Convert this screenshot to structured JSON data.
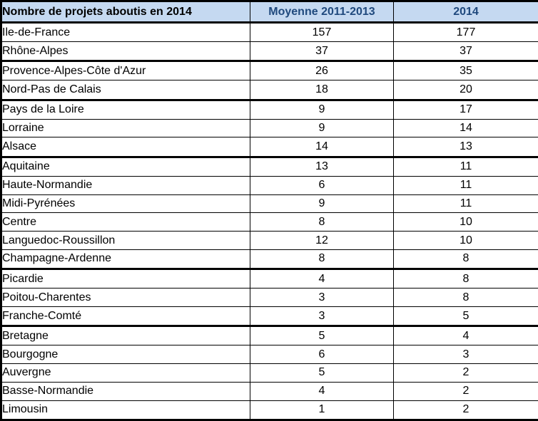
{
  "colors": {
    "header_background": "#C5D9F1",
    "header_title_text": "#000000",
    "header_column_text": "#1F497D",
    "body_text": "#000000",
    "border": "#000000"
  },
  "table": {
    "header": {
      "col1": "Nombre de projets aboutis en 2014",
      "col2": "Moyenne 2011-2013",
      "col3": "2014"
    },
    "rows": [
      {
        "region": "Ile-de-France",
        "avg": "157",
        "y2014": "177",
        "thick_below": false
      },
      {
        "region": "Rhône-Alpes",
        "avg": "37",
        "y2014": "37",
        "thick_below": true
      },
      {
        "region": "Provence-Alpes-Côte d'Azur",
        "avg": "26",
        "y2014": "35",
        "thick_below": false
      },
      {
        "region": "Nord-Pas de Calais",
        "avg": "18",
        "y2014": "20",
        "thick_below": true
      },
      {
        "region": "Pays de la Loire",
        "avg": "9",
        "y2014": "17",
        "thick_below": false
      },
      {
        "region": "Lorraine",
        "avg": "9",
        "y2014": "14",
        "thick_below": false
      },
      {
        "region": "Alsace",
        "avg": "14",
        "y2014": "13",
        "thick_below": true
      },
      {
        "region": "Aquitaine",
        "avg": "13",
        "y2014": "11",
        "thick_below": false
      },
      {
        "region": "Haute-Normandie",
        "avg": "6",
        "y2014": "11",
        "thick_below": false
      },
      {
        "region": "Midi-Pyrénées",
        "avg": "9",
        "y2014": "11",
        "thick_below": false
      },
      {
        "region": "Centre",
        "avg": "8",
        "y2014": "10",
        "thick_below": false
      },
      {
        "region": "Languedoc-Roussillon",
        "avg": "12",
        "y2014": "10",
        "thick_below": false
      },
      {
        "region": "Champagne-Ardenne",
        "avg": "8",
        "y2014": "8",
        "thick_below": true
      },
      {
        "region": "Picardie",
        "avg": "4",
        "y2014": "8",
        "thick_below": false
      },
      {
        "region": "Poitou-Charentes",
        "avg": "3",
        "y2014": "8",
        "thick_below": false
      },
      {
        "region": "Franche-Comté",
        "avg": "3",
        "y2014": "5",
        "thick_below": true
      },
      {
        "region": "Bretagne",
        "avg": "5",
        "y2014": "4",
        "thick_below": false
      },
      {
        "region": "Bourgogne",
        "avg": "6",
        "y2014": "3",
        "thick_below": false
      },
      {
        "region": "Auvergne",
        "avg": "5",
        "y2014": "2",
        "thick_below": false
      },
      {
        "region": "Basse-Normandie",
        "avg": "4",
        "y2014": "2",
        "thick_below": false
      },
      {
        "region": "Limousin",
        "avg": "1",
        "y2014": "2",
        "thick_below": false
      }
    ]
  },
  "chart_data": {
    "type": "table",
    "title": "Nombre de projets aboutis en 2014",
    "columns": [
      "Nombre de projets aboutis en 2014",
      "Moyenne 2011-2013",
      "2014"
    ],
    "rows": [
      [
        "Ile-de-France",
        157,
        177
      ],
      [
        "Rhône-Alpes",
        37,
        37
      ],
      [
        "Provence-Alpes-Côte d'Azur",
        26,
        35
      ],
      [
        "Nord-Pas de Calais",
        18,
        20
      ],
      [
        "Pays de la Loire",
        9,
        17
      ],
      [
        "Lorraine",
        9,
        14
      ],
      [
        "Alsace",
        14,
        13
      ],
      [
        "Aquitaine",
        13,
        11
      ],
      [
        "Haute-Normandie",
        6,
        11
      ],
      [
        "Midi-Pyrénées",
        9,
        11
      ],
      [
        "Centre",
        8,
        10
      ],
      [
        "Languedoc-Roussillon",
        12,
        10
      ],
      [
        "Champagne-Ardenne",
        8,
        8
      ],
      [
        "Picardie",
        4,
        8
      ],
      [
        "Poitou-Charentes",
        3,
        8
      ],
      [
        "Franche-Comté",
        3,
        5
      ],
      [
        "Bretagne",
        5,
        4
      ],
      [
        "Bourgogne",
        6,
        3
      ],
      [
        "Auvergne",
        5,
        2
      ],
      [
        "Basse-Normandie",
        4,
        2
      ],
      [
        "Limousin",
        1,
        2
      ]
    ],
    "layout_hints": {
      "header_background": "#C5D9F1",
      "group_separator_after_rows": [
        2,
        4,
        7,
        13,
        16
      ]
    }
  }
}
